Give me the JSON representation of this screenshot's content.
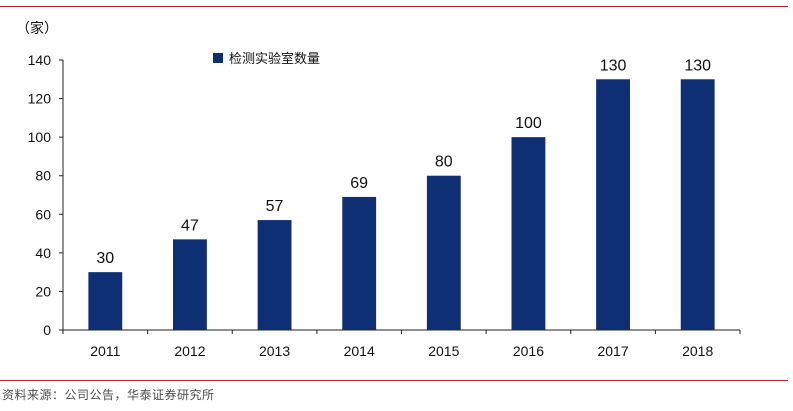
{
  "chart_data": {
    "type": "bar",
    "unit_label": "（家）",
    "categories": [
      "2011",
      "2012",
      "2013",
      "2014",
      "2015",
      "2016",
      "2017",
      "2018"
    ],
    "series": [
      {
        "name": "检测实验室数量",
        "values": [
          30,
          47,
          57,
          69,
          80,
          100,
          130,
          130
        ]
      }
    ],
    "ylim": [
      0,
      140
    ],
    "yticks": [
      0,
      20,
      40,
      60,
      80,
      100,
      120,
      140
    ],
    "grid": false,
    "legend_position": "top-left",
    "colors": {
      "bar": "#0e2f74"
    }
  },
  "footer": {
    "source": "资料来源：公司公告，华泰证券研究所"
  }
}
